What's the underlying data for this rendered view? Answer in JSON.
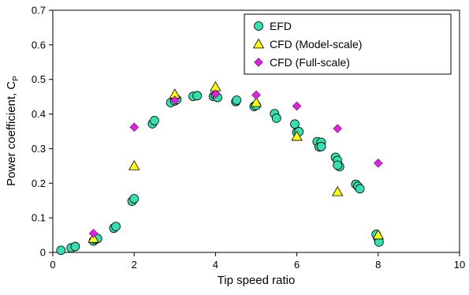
{
  "chart_data": {
    "type": "scatter",
    "xlabel": "Tip speed ratio",
    "ylabel": "Power coefficient, C",
    "ylabel_subscript": "P",
    "xlim": [
      0,
      10
    ],
    "ylim": [
      0,
      0.7
    ],
    "x_ticks": [
      "0",
      "2",
      "4",
      "6",
      "8",
      "10"
    ],
    "y_ticks": [
      "0",
      "0.1",
      "0.2",
      "0.3",
      "0.4",
      "0.5",
      "0.6",
      "0.7"
    ],
    "grid": false,
    "legend_position": "top-right",
    "colors": {
      "efd": "#33E0B0",
      "cfd_model": "#FFFF00",
      "cfd_full": "#E020E0",
      "outline": "#000000"
    },
    "series": [
      {
        "name": "EFD",
        "marker": "circle",
        "points": [
          [
            0.2,
            0.006
          ],
          [
            0.45,
            0.013
          ],
          [
            0.55,
            0.017
          ],
          [
            1.0,
            0.033
          ],
          [
            1.05,
            0.038
          ],
          [
            1.1,
            0.04
          ],
          [
            1.5,
            0.07
          ],
          [
            1.55,
            0.075
          ],
          [
            1.95,
            0.148
          ],
          [
            2.0,
            0.155
          ],
          [
            2.45,
            0.372
          ],
          [
            2.5,
            0.381
          ],
          [
            2.9,
            0.433
          ],
          [
            3.0,
            0.438
          ],
          [
            3.05,
            0.442
          ],
          [
            3.45,
            0.451
          ],
          [
            3.55,
            0.453
          ],
          [
            3.95,
            0.451
          ],
          [
            4.0,
            0.454
          ],
          [
            4.05,
            0.448
          ],
          [
            4.5,
            0.436
          ],
          [
            4.52,
            0.44
          ],
          [
            4.95,
            0.422
          ],
          [
            5.0,
            0.425
          ],
          [
            5.45,
            0.401
          ],
          [
            5.5,
            0.388
          ],
          [
            5.95,
            0.371
          ],
          [
            6.0,
            0.347
          ],
          [
            6.05,
            0.349
          ],
          [
            6.5,
            0.32
          ],
          [
            6.55,
            0.305
          ],
          [
            6.6,
            0.318
          ],
          [
            6.6,
            0.306
          ],
          [
            6.95,
            0.275
          ],
          [
            7.0,
            0.266
          ],
          [
            7.05,
            0.248
          ],
          [
            7.0,
            0.252
          ],
          [
            7.45,
            0.197
          ],
          [
            7.5,
            0.191
          ],
          [
            7.55,
            0.184
          ],
          [
            7.95,
            0.052
          ],
          [
            8.0,
            0.04
          ],
          [
            8.02,
            0.03
          ]
        ]
      },
      {
        "name": "CFD (Model-scale)",
        "marker": "triangle",
        "points": [
          [
            1.0,
            0.04
          ],
          [
            2.0,
            0.25
          ],
          [
            3.0,
            0.457
          ],
          [
            4.0,
            0.478
          ],
          [
            5.0,
            0.433
          ],
          [
            6.0,
            0.335
          ],
          [
            7.0,
            0.175
          ],
          [
            8.0,
            0.05
          ]
        ]
      },
      {
        "name": "CFD (Full-scale)",
        "marker": "diamond",
        "points": [
          [
            1.0,
            0.055
          ],
          [
            2.0,
            0.362
          ],
          [
            3.0,
            0.44
          ],
          [
            4.0,
            0.458
          ],
          [
            5.0,
            0.455
          ],
          [
            6.0,
            0.423
          ],
          [
            7.0,
            0.358
          ],
          [
            8.0,
            0.258
          ]
        ]
      }
    ]
  }
}
